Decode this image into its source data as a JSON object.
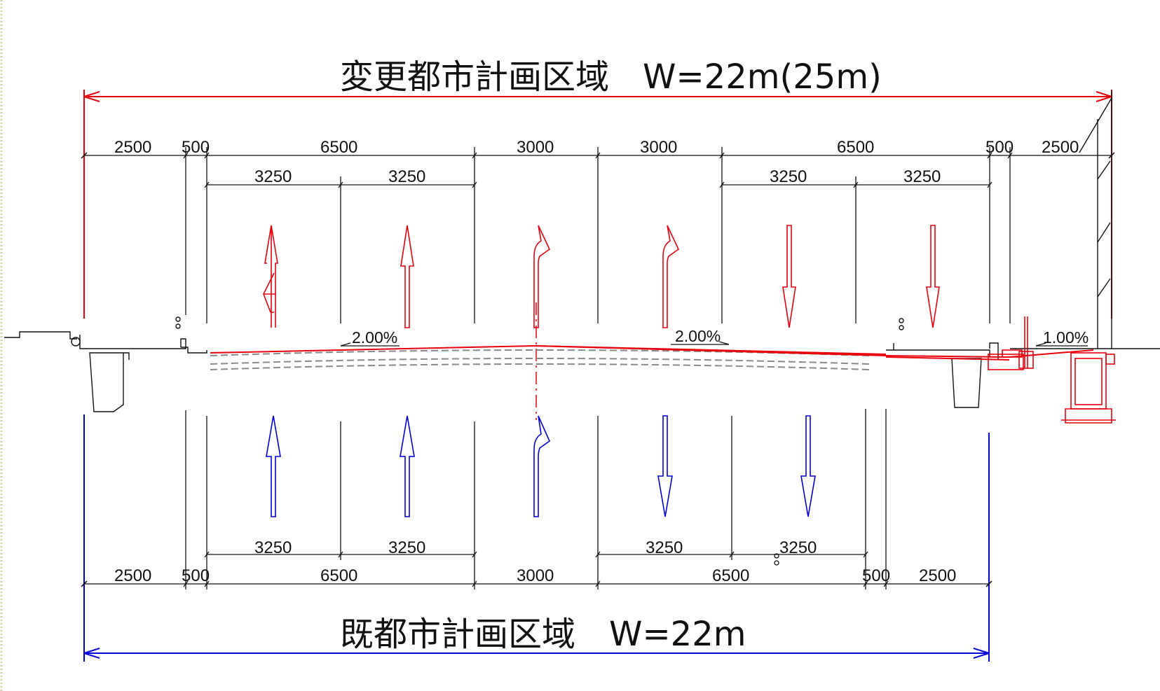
{
  "titles": {
    "changed": "変更都市計画区域　W=22m(25m)",
    "existing": "既都市計画区域　W=22m"
  },
  "colors": {
    "changed": "#e8000b",
    "existing": "#0000dd",
    "linework": "#111111",
    "background_edge": "#d8d2a8"
  },
  "changed_section": {
    "widths": [
      "2500",
      "500",
      "6500",
      "3000",
      "3000",
      "6500",
      "500",
      "2500"
    ],
    "lane_widths": [
      "3250",
      "3250",
      "3250",
      "3250"
    ],
    "slopes": [
      "2.00%",
      "2.00%",
      "1.00%"
    ],
    "lane_arrows": [
      "up-left-turn",
      "up",
      "up-right-turn",
      "up-right-turn",
      "down",
      "down"
    ]
  },
  "existing_section": {
    "widths": [
      "2500",
      "500",
      "6500",
      "3000",
      "6500",
      "500",
      "2500"
    ],
    "lane_widths": [
      "3250",
      "3250",
      "3250",
      "3250"
    ],
    "lane_arrows": [
      "up",
      "up",
      "up-right-turn",
      "down",
      "down"
    ]
  }
}
